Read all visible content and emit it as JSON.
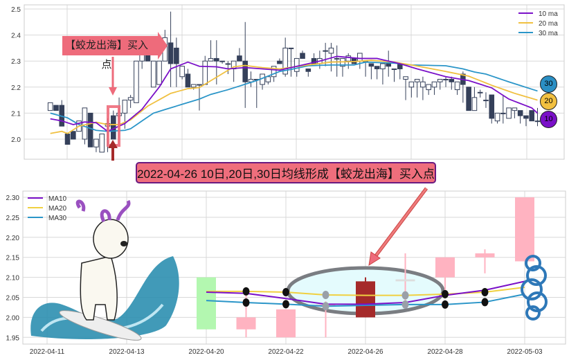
{
  "chart_data": [
    {
      "type": "candlestick",
      "legend": {
        "placement": "top-right",
        "entries": [
          "10 ma",
          "20 ma",
          "30 ma"
        ]
      },
      "ylim": [
        1.92,
        2.52
      ],
      "yticks": [
        "2.0",
        "2.1",
        "2.2",
        "2.3",
        "2.4",
        "2.5"
      ],
      "grid": true,
      "colors": {
        "up": "#ffffff",
        "down": "#35405a",
        "ma10": "#7a10c8",
        "ma20": "#f0c040",
        "ma30": "#2a95c8"
      },
      "ohlc": [
        [
          2.11,
          2.14,
          2.11,
          2.14
        ],
        [
          2.13,
          2.13,
          2.11,
          2.11
        ],
        [
          2.13,
          2.15,
          2.05,
          2.05
        ],
        [
          2.02,
          2.02,
          1.98,
          1.98
        ],
        [
          2.03,
          2.03,
          2.0,
          2.0
        ],
        [
          2.03,
          2.07,
          2.03,
          2.07
        ],
        [
          2.0,
          2.12,
          1.98,
          2.12
        ],
        [
          2.1,
          2.1,
          1.97,
          1.97
        ],
        [
          1.97,
          2.0,
          1.95,
          2.0
        ],
        [
          1.95,
          2.02,
          1.95,
          2.02
        ],
        [
          2.05,
          2.08,
          1.95,
          2.06
        ],
        [
          2.09,
          2.11,
          2.0,
          2.0
        ],
        [
          2.09,
          2.16,
          2.06,
          2.1
        ],
        [
          2.1,
          2.15,
          2.04,
          2.15
        ],
        [
          2.15,
          2.17,
          2.12,
          2.16
        ],
        [
          2.14,
          2.3,
          2.14,
          2.3
        ],
        [
          2.3,
          2.36,
          2.27,
          2.34
        ],
        [
          2.33,
          2.34,
          2.3,
          2.3
        ],
        [
          2.2,
          2.3,
          2.2,
          2.3
        ],
        [
          2.21,
          2.3,
          2.21,
          2.3
        ],
        [
          2.3,
          2.42,
          2.3,
          2.39
        ],
        [
          2.37,
          2.49,
          2.2,
          2.29
        ],
        [
          2.35,
          2.39,
          2.2,
          2.29
        ],
        [
          2.24,
          2.28,
          2.23,
          2.28
        ],
        [
          2.25,
          2.27,
          2.2,
          2.2
        ],
        [
          2.2,
          2.21,
          2.19,
          2.21
        ],
        [
          2.21,
          2.21,
          2.11,
          2.21
        ],
        [
          2.21,
          2.32,
          2.21,
          2.3
        ],
        [
          2.3,
          2.38,
          2.3,
          2.31
        ],
        [
          2.31,
          2.38,
          2.21,
          2.3
        ],
        [
          2.3,
          2.3,
          2.29,
          2.3
        ],
        [
          2.29,
          2.3,
          2.25,
          2.29
        ],
        [
          2.27,
          2.3,
          2.22,
          2.3
        ],
        [
          2.32,
          2.35,
          2.3,
          2.3
        ],
        [
          2.3,
          2.45,
          2.12,
          2.22
        ],
        [
          2.22,
          2.26,
          2.2,
          2.23
        ],
        [
          2.23,
          2.23,
          2.12,
          2.23
        ],
        [
          2.21,
          2.25,
          2.19,
          2.25
        ],
        [
          2.22,
          2.24,
          2.21,
          2.24
        ],
        [
          2.24,
          2.28,
          2.22,
          2.28
        ],
        [
          2.3,
          2.31,
          2.29,
          2.29
        ],
        [
          2.25,
          2.39,
          2.24,
          2.35
        ],
        [
          2.35,
          2.35,
          2.24,
          2.35
        ],
        [
          2.26,
          2.31,
          2.24,
          2.31
        ],
        [
          2.33,
          2.34,
          2.31,
          2.31
        ],
        [
          2.27,
          2.27,
          2.24,
          2.26
        ],
        [
          2.31,
          2.33,
          2.29,
          2.29
        ],
        [
          2.29,
          2.34,
          2.27,
          2.31
        ],
        [
          2.34,
          2.37,
          2.28,
          2.34
        ],
        [
          2.33,
          2.37,
          2.26,
          2.35
        ],
        [
          2.31,
          2.36,
          2.24,
          2.31
        ],
        [
          2.28,
          2.31,
          2.24,
          2.31
        ],
        [
          2.3,
          2.33,
          2.27,
          2.32
        ],
        [
          2.31,
          2.31,
          2.29,
          2.29
        ],
        [
          2.3,
          2.33,
          2.27,
          2.33
        ],
        [
          2.3,
          2.3,
          2.24,
          2.3
        ],
        [
          2.29,
          2.29,
          2.23,
          2.28
        ],
        [
          2.28,
          2.28,
          2.23,
          2.27
        ],
        [
          2.27,
          2.29,
          2.21,
          2.29
        ],
        [
          2.29,
          2.34,
          2.24,
          2.28
        ],
        [
          2.27,
          2.27,
          2.22,
          2.27
        ],
        [
          2.29,
          2.29,
          2.23,
          2.27
        ],
        [
          2.23,
          2.24,
          2.15,
          2.24
        ],
        [
          2.2,
          2.22,
          2.16,
          2.22
        ],
        [
          2.22,
          2.23,
          2.16,
          2.23
        ],
        [
          2.2,
          2.24,
          2.15,
          2.22
        ],
        [
          2.19,
          2.21,
          2.17,
          2.21
        ],
        [
          2.2,
          2.22,
          2.17,
          2.22
        ],
        [
          2.22,
          2.23,
          2.19,
          2.23
        ],
        [
          2.23,
          2.24,
          2.2,
          2.23
        ],
        [
          2.23,
          2.24,
          2.19,
          2.22
        ],
        [
          2.19,
          2.22,
          2.17,
          2.22
        ],
        [
          2.25,
          2.26,
          2.14,
          2.21
        ],
        [
          2.2,
          2.2,
          2.11,
          2.11
        ],
        [
          2.11,
          2.2,
          2.11,
          2.16
        ],
        [
          2.18,
          2.19,
          2.16,
          2.18
        ],
        [
          2.15,
          2.18,
          2.12,
          2.15
        ],
        [
          2.17,
          2.17,
          2.06,
          2.08
        ],
        [
          2.07,
          2.1,
          2.06,
          2.1
        ],
        [
          2.1,
          2.17,
          2.06,
          2.1
        ],
        [
          2.08,
          2.12,
          2.08,
          2.12
        ],
        [
          2.11,
          2.12,
          2.08,
          2.12
        ],
        [
          2.11,
          2.11,
          2.06,
          2.09
        ],
        [
          2.09,
          2.09,
          2.05,
          2.08
        ],
        [
          2.11,
          2.11,
          2.07,
          2.07
        ],
        [
          2.07,
          2.12,
          2.05,
          2.07
        ]
      ],
      "ma10": [
        [
          0,
          2.078
        ],
        [
          2,
          2.07
        ],
        [
          4,
          2.056
        ],
        [
          6,
          2.066
        ],
        [
          8,
          2.063
        ],
        [
          10,
          2.03
        ],
        [
          13,
          2.06
        ],
        [
          16,
          2.115
        ],
        [
          19,
          2.2
        ],
        [
          21,
          2.27
        ],
        [
          24,
          2.296
        ],
        [
          26,
          2.28
        ],
        [
          29,
          2.278
        ],
        [
          31,
          2.27
        ],
        [
          34,
          2.275
        ],
        [
          37,
          2.27
        ],
        [
          40,
          2.265
        ],
        [
          43,
          2.28
        ],
        [
          47,
          2.3
        ],
        [
          50,
          2.318
        ],
        [
          54,
          2.31
        ],
        [
          57,
          2.31
        ],
        [
          61,
          2.29
        ],
        [
          64,
          2.27
        ],
        [
          69,
          2.24
        ],
        [
          73,
          2.225
        ],
        [
          77,
          2.197
        ],
        [
          80,
          2.154
        ],
        [
          84,
          2.12
        ],
        [
          85,
          2.1
        ]
      ],
      "ma20": [
        [
          0,
          2.022
        ],
        [
          2,
          2.03
        ],
        [
          3,
          2.022
        ],
        [
          5,
          2.05
        ],
        [
          8,
          2.065
        ],
        [
          10,
          2.056
        ],
        [
          12,
          2.056
        ],
        [
          14,
          2.074
        ],
        [
          17,
          2.127
        ],
        [
          21,
          2.176
        ],
        [
          24,
          2.194
        ],
        [
          26,
          2.198
        ],
        [
          29,
          2.238
        ],
        [
          32,
          2.278
        ],
        [
          34,
          2.283
        ],
        [
          37,
          2.275
        ],
        [
          40,
          2.27
        ],
        [
          45,
          2.285
        ],
        [
          49,
          2.296
        ],
        [
          53,
          2.298
        ],
        [
          56,
          2.303
        ],
        [
          60,
          2.296
        ],
        [
          63,
          2.285
        ],
        [
          69,
          2.26
        ],
        [
          73,
          2.242
        ],
        [
          77,
          2.207
        ],
        [
          81,
          2.176
        ],
        [
          85,
          2.15
        ]
      ],
      "ma30": [
        [
          0,
          2.1
        ],
        [
          3,
          2.082
        ],
        [
          5,
          2.056
        ],
        [
          8,
          2.034
        ],
        [
          10,
          2.03
        ],
        [
          13,
          2.034
        ],
        [
          14,
          2.04
        ],
        [
          16,
          2.07
        ],
        [
          18,
          2.1
        ],
        [
          23,
          2.134
        ],
        [
          26,
          2.154
        ],
        [
          28,
          2.172
        ],
        [
          31,
          2.19
        ],
        [
          34,
          2.211
        ],
        [
          36,
          2.225
        ],
        [
          40,
          2.26
        ],
        [
          42,
          2.268
        ],
        [
          45,
          2.282
        ],
        [
          49,
          2.285
        ],
        [
          53,
          2.285
        ],
        [
          55,
          2.296
        ],
        [
          60,
          2.292
        ],
        [
          63,
          2.285
        ],
        [
          69,
          2.282
        ],
        [
          72,
          2.27
        ],
        [
          74,
          2.258
        ],
        [
          76,
          2.25
        ],
        [
          80,
          2.22
        ],
        [
          85,
          2.185
        ]
      ],
      "end_badges": [
        "30",
        "20",
        "10"
      ],
      "annotation": "【蛟龙出海】买入点"
    },
    {
      "type": "candlestick",
      "legend": {
        "placement": "top-left",
        "entries": [
          "MA10",
          "MA20",
          "MA30"
        ]
      },
      "ylim": [
        1.935,
        2.315
      ],
      "yticks": [
        "1.95",
        "2.00",
        "2.05",
        "2.10",
        "2.15",
        "2.20",
        "2.25",
        "2.30"
      ],
      "xticks": [
        "2022-04-11",
        "2022-04-13",
        "2022-04-20",
        "2022-04-22",
        "2022-04-26",
        "2022-04-28",
        "2022-05-03"
      ],
      "grid": true,
      "candles": [
        {
          "body": [
            1.97,
            2.1
          ],
          "wick": [
            1.97,
            2.1
          ],
          "color": "#b3f7b0"
        },
        {
          "body": [
            1.97,
            2.0
          ],
          "wick": [
            1.95,
            2.06
          ],
          "color": "#ffb3c1"
        },
        {
          "body": [
            1.95,
            2.02
          ],
          "wick": [
            1.95,
            2.02
          ],
          "color": "#ffb3c1"
        },
        {
          "body": [
            2.03,
            2.032
          ],
          "wick": [
            1.95,
            2.04
          ],
          "color": "#ffb3c1"
        },
        {
          "body": [
            2.0,
            2.09
          ],
          "wick": [
            2.0,
            2.1
          ],
          "color": "#a52a2a"
        },
        {
          "body": [
            2.09,
            2.095
          ],
          "wick": [
            2.03,
            2.16
          ],
          "color": "#dddddd"
        },
        {
          "body": [
            2.1,
            2.15
          ],
          "wick": [
            2.05,
            2.15
          ],
          "color": "#ffb3c1"
        },
        {
          "body": [
            2.15,
            2.16
          ],
          "wick": [
            2.11,
            2.17
          ],
          "color": "#ffb3c1"
        },
        {
          "body": [
            2.14,
            2.3
          ],
          "wick": [
            2.14,
            2.3
          ],
          "color": "#ffb3c1"
        }
      ],
      "ma10": [
        2.063,
        2.06,
        2.047,
        2.033,
        2.033,
        2.037,
        2.055,
        2.068,
        2.09
      ],
      "ma20": [
        2.065,
        2.065,
        2.063,
        2.056,
        2.055,
        2.055,
        2.058,
        2.063,
        2.075
      ],
      "ma30": [
        2.042,
        2.037,
        2.033,
        2.028,
        2.03,
        2.032,
        2.032,
        2.038,
        2.058
      ],
      "colors": {
        "ma10": "#7a10c8",
        "ma20": "#f0d040",
        "ma30": "#2a95c8"
      }
    }
  ],
  "banner": "2022-04-26 10日,20日,30日均线形成【蛟龙出海】买入点"
}
